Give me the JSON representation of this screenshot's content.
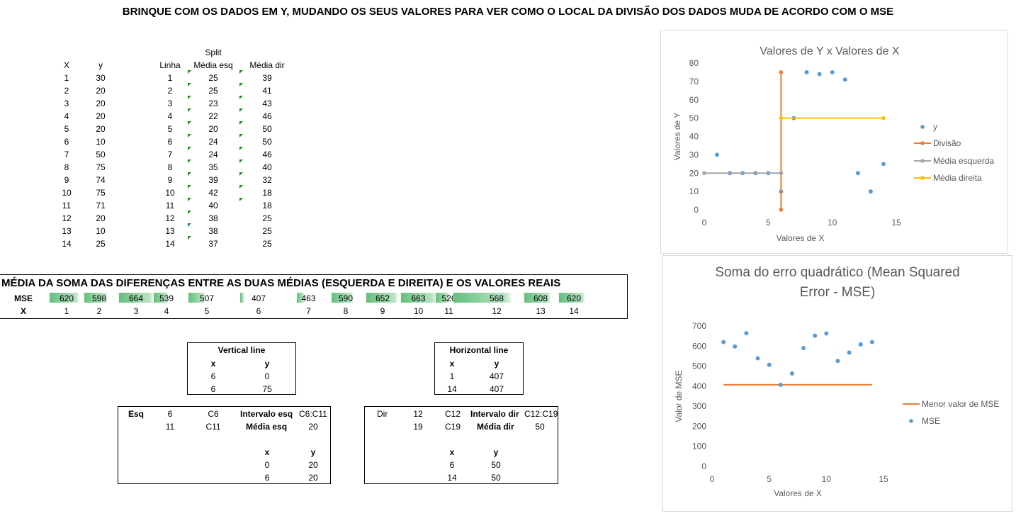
{
  "title": "BRINQUE COM OS DADOS EM Y, MUDANDO OS SEUS VALORES PARA VER COMO O LOCAL DA DIVISÃO DOS DADOS MUDA DE ACORDO COM O MSE",
  "xy_table": {
    "h_x": "X",
    "h_y": "y",
    "x": [
      "1",
      "2",
      "3",
      "4",
      "5",
      "6",
      "7",
      "8",
      "9",
      "10",
      "11",
      "12",
      "13",
      "14"
    ],
    "y": [
      "30",
      "20",
      "20",
      "20",
      "20",
      "10",
      "50",
      "75",
      "74",
      "75",
      "71",
      "20",
      "10",
      "25"
    ]
  },
  "split_table": {
    "h_split": "Split",
    "h_linha": "Linha",
    "h_esq": "Média esq",
    "h_dir": "Média dir",
    "linha": [
      "1",
      "2",
      "3",
      "4",
      "5",
      "6",
      "7",
      "8",
      "9",
      "10",
      "11",
      "12",
      "13",
      "14"
    ],
    "esq": [
      "25",
      "25",
      "23",
      "22",
      "20",
      "24",
      "24",
      "35",
      "39",
      "42",
      "40",
      "38",
      "38",
      "37"
    ],
    "dir": [
      "39",
      "41",
      "43",
      "46",
      "50",
      "50",
      "46",
      "40",
      "32",
      "18",
      "18",
      "25",
      "25",
      "25"
    ]
  },
  "mse_section": {
    "title": "MÉDIA DA SOMA DAS DIFERENÇAS ENTRE AS DUAS MÉDIAS (ESQUERDA E DIREITA) E OS VALORES REAIS",
    "row_mse": "MSE",
    "row_x": "X",
    "values": [
      620,
      598,
      664,
      539,
      507,
      407,
      463,
      590,
      652,
      663,
      526,
      568,
      608,
      620
    ],
    "x": [
      "1",
      "2",
      "3",
      "4",
      "5",
      "6",
      "7",
      "8",
      "9",
      "10",
      "11",
      "12",
      "13",
      "14"
    ]
  },
  "vertical_line": {
    "title": "Vertical line",
    "h_x": "x",
    "h_y": "y",
    "rows": [
      [
        "6",
        "0"
      ],
      [
        "6",
        "75"
      ]
    ]
  },
  "horizontal_line": {
    "title": "Horizontal line",
    "h_x": "x",
    "h_y": "y",
    "rows": [
      [
        "1",
        "407"
      ],
      [
        "14",
        "407"
      ]
    ]
  },
  "esq_box": {
    "label": "Esq",
    "a1": "6",
    "a2": "11",
    "c1": "C6",
    "c2": "C11",
    "interval_label": "Intervalo esq",
    "interval": "C6:C11",
    "media_label": "Média esq",
    "media": "20",
    "h_x": "x",
    "h_y": "y",
    "rows": [
      [
        "0",
        "20"
      ],
      [
        "6",
        "20"
      ]
    ]
  },
  "dir_box": {
    "label": "Dir",
    "a1": "12",
    "a2": "19",
    "c1": "C12",
    "c2": "C19",
    "interval_label": "Intervalo dir",
    "interval": "C12:C19",
    "media_label": "Média dir",
    "media": "50",
    "h_x": "x",
    "h_y": "y",
    "rows": [
      [
        "6",
        "50"
      ],
      [
        "14",
        "50"
      ]
    ]
  },
  "chart_data": [
    {
      "type": "scatter",
      "title": "Valores de Y x Valores de X",
      "xlabel": "Valores de X",
      "ylabel": "Valores de Y",
      "xlim": [
        0,
        15
      ],
      "ylim": [
        0,
        80
      ],
      "xticks": [
        "0",
        "5",
        "10",
        "15"
      ],
      "yticks": [
        "0",
        "10",
        "20",
        "30",
        "40",
        "50",
        "60",
        "70",
        "80"
      ],
      "grid": false,
      "legend_position": "right",
      "series": [
        {
          "name": "y",
          "mode": "markers",
          "color": "#5b9bd5",
          "x": [
            1,
            2,
            3,
            4,
            5,
            6,
            7,
            8,
            9,
            10,
            11,
            12,
            13,
            14
          ],
          "y": [
            30,
            20,
            20,
            20,
            20,
            10,
            50,
            75,
            74,
            75,
            71,
            20,
            10,
            25
          ]
        },
        {
          "name": "Divisão",
          "mode": "lines+markers",
          "color": "#ed7d31",
          "x": [
            6,
            6
          ],
          "y": [
            0,
            75
          ]
        },
        {
          "name": "Média esquerda",
          "mode": "lines+markers",
          "color": "#a5a5a5",
          "x": [
            0,
            6
          ],
          "y": [
            20,
            20
          ]
        },
        {
          "name": "Média direita",
          "mode": "lines+markers",
          "color": "#ffc000",
          "x": [
            6,
            14
          ],
          "y": [
            50,
            50
          ]
        }
      ]
    },
    {
      "type": "scatter",
      "title": "Soma do erro quadrático (Mean Squared Error - MSE)",
      "title_lines": [
        "Soma do erro quadrático (Mean Squared",
        "Error - MSE)"
      ],
      "xlabel": "Valores de X",
      "ylabel": "Valor de MSE",
      "xlim": [
        0,
        15
      ],
      "ylim": [
        0,
        700
      ],
      "xticks": [
        "0",
        "5",
        "10",
        "15"
      ],
      "yticks": [
        "0",
        "100",
        "200",
        "300",
        "400",
        "500",
        "600",
        "700"
      ],
      "grid": false,
      "legend_position": "right",
      "series": [
        {
          "name": "Menor valor de MSE",
          "mode": "lines",
          "color": "#ed7d31",
          "x": [
            1,
            14
          ],
          "y": [
            407,
            407
          ]
        },
        {
          "name": "MSE",
          "mode": "markers",
          "color": "#5b9bd5",
          "x": [
            1,
            2,
            3,
            4,
            5,
            6,
            7,
            8,
            9,
            10,
            11,
            12,
            13,
            14
          ],
          "y": [
            620,
            598,
            664,
            539,
            507,
            407,
            463,
            590,
            652,
            663,
            526,
            568,
            608,
            620
          ]
        }
      ]
    }
  ]
}
